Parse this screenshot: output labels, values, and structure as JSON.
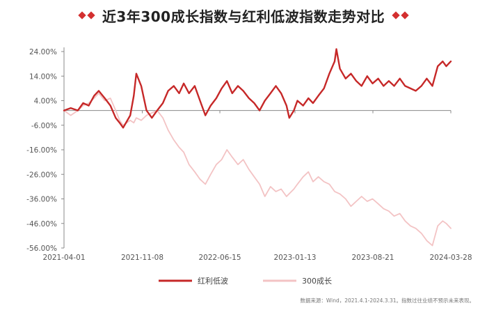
{
  "colors": {
    "dividend": "#c62828",
    "growth": "#f3c3c4",
    "accent": "#d32f2f",
    "axis": "#888888"
  },
  "chart_data": {
    "type": "line",
    "title": "近3年300成长指数与红利低波指数走势对比",
    "ylim": [
      -56,
      24
    ],
    "y_ticks": [
      24,
      14,
      4,
      -6,
      -16,
      -26,
      -36,
      -46,
      -56
    ],
    "y_tick_labels": [
      "24.00%",
      "14.00%",
      "4.00%",
      "-6.00%",
      "-16.00%",
      "-26.00%",
      "-36.00%",
      "-46.00%",
      "-56.00%"
    ],
    "x_tick_labels": [
      "2021-04-01",
      "2021-11-08",
      "2022-06-15",
      "2023-01-13",
      "2023-08-21",
      "2024-03-28"
    ],
    "x_tick_dates": [
      "2021-04-01",
      "2021-11-08",
      "2022-06-15",
      "2023-01-13",
      "2023-08-21",
      "2024-03-28"
    ],
    "grid": false,
    "legend": "bottom-center",
    "series": [
      {
        "name": "红利低波",
        "points": [
          [
            "2021-04-01",
            0
          ],
          [
            "2021-04-20",
            1
          ],
          [
            "2021-05-10",
            0
          ],
          [
            "2021-05-25",
            3
          ],
          [
            "2021-06-10",
            2
          ],
          [
            "2021-06-25",
            6
          ],
          [
            "2021-07-08",
            8
          ],
          [
            "2021-07-25",
            5
          ],
          [
            "2021-08-10",
            2
          ],
          [
            "2021-08-25",
            -3
          ],
          [
            "2021-09-05",
            -5
          ],
          [
            "2021-09-15",
            -7
          ],
          [
            "2021-10-05",
            -2
          ],
          [
            "2021-10-15",
            6
          ],
          [
            "2021-10-22",
            15
          ],
          [
            "2021-11-05",
            10
          ],
          [
            "2021-11-20",
            0
          ],
          [
            "2021-12-05",
            -3
          ],
          [
            "2021-12-20",
            0
          ],
          [
            "2022-01-05",
            3
          ],
          [
            "2022-01-20",
            8
          ],
          [
            "2022-02-05",
            10
          ],
          [
            "2022-02-20",
            7
          ],
          [
            "2022-03-05",
            11
          ],
          [
            "2022-03-20",
            7
          ],
          [
            "2022-04-05",
            10
          ],
          [
            "2022-04-20",
            4
          ],
          [
            "2022-05-05",
            -2
          ],
          [
            "2022-05-20",
            2
          ],
          [
            "2022-06-05",
            5
          ],
          [
            "2022-06-20",
            9
          ],
          [
            "2022-07-05",
            12
          ],
          [
            "2022-07-20",
            7
          ],
          [
            "2022-08-05",
            10
          ],
          [
            "2022-08-20",
            8
          ],
          [
            "2022-09-05",
            5
          ],
          [
            "2022-09-20",
            3
          ],
          [
            "2022-10-05",
            0
          ],
          [
            "2022-10-20",
            4
          ],
          [
            "2022-11-05",
            7
          ],
          [
            "2022-11-20",
            10
          ],
          [
            "2022-12-05",
            7
          ],
          [
            "2022-12-20",
            2
          ],
          [
            "2022-12-28",
            -3
          ],
          [
            "2023-01-10",
            0
          ],
          [
            "2023-01-20",
            4
          ],
          [
            "2023-02-05",
            2
          ],
          [
            "2023-02-20",
            5
          ],
          [
            "2023-03-05",
            3
          ],
          [
            "2023-03-20",
            6
          ],
          [
            "2023-04-05",
            9
          ],
          [
            "2023-04-20",
            15
          ],
          [
            "2023-05-05",
            20
          ],
          [
            "2023-05-10",
            25
          ],
          [
            "2023-05-20",
            17
          ],
          [
            "2023-06-05",
            13
          ],
          [
            "2023-06-20",
            15
          ],
          [
            "2023-07-05",
            12
          ],
          [
            "2023-07-20",
            10
          ],
          [
            "2023-08-05",
            14
          ],
          [
            "2023-08-20",
            11
          ],
          [
            "2023-09-05",
            13
          ],
          [
            "2023-09-20",
            10
          ],
          [
            "2023-10-05",
            12
          ],
          [
            "2023-10-20",
            10
          ],
          [
            "2023-11-05",
            13
          ],
          [
            "2023-11-20",
            10
          ],
          [
            "2023-12-05",
            9
          ],
          [
            "2023-12-20",
            8
          ],
          [
            "2024-01-05",
            10
          ],
          [
            "2024-01-20",
            13
          ],
          [
            "2024-02-05",
            10
          ],
          [
            "2024-02-20",
            18
          ],
          [
            "2024-03-05",
            20
          ],
          [
            "2024-03-15",
            18
          ],
          [
            "2024-03-28",
            20
          ]
        ]
      },
      {
        "name": "300成长",
        "points": [
          [
            "2021-04-01",
            0
          ],
          [
            "2021-04-20",
            -2
          ],
          [
            "2021-05-10",
            0
          ],
          [
            "2021-05-25",
            2
          ],
          [
            "2021-06-10",
            3
          ],
          [
            "2021-06-25",
            5
          ],
          [
            "2021-07-08",
            7
          ],
          [
            "2021-07-25",
            4
          ],
          [
            "2021-08-10",
            5
          ],
          [
            "2021-08-25",
            0
          ],
          [
            "2021-09-05",
            -4
          ],
          [
            "2021-09-15",
            -6
          ],
          [
            "2021-10-05",
            -4
          ],
          [
            "2021-10-15",
            -5
          ],
          [
            "2021-10-22",
            -3
          ],
          [
            "2021-11-05",
            -4
          ],
          [
            "2021-11-20",
            -2
          ],
          [
            "2021-12-05",
            -1
          ],
          [
            "2021-12-20",
            0
          ],
          [
            "2022-01-05",
            -3
          ],
          [
            "2022-01-20",
            -8
          ],
          [
            "2022-02-05",
            -12
          ],
          [
            "2022-02-20",
            -15
          ],
          [
            "2022-03-05",
            -17
          ],
          [
            "2022-03-20",
            -22
          ],
          [
            "2022-04-05",
            -25
          ],
          [
            "2022-04-20",
            -28
          ],
          [
            "2022-05-05",
            -30
          ],
          [
            "2022-05-20",
            -26
          ],
          [
            "2022-06-05",
            -22
          ],
          [
            "2022-06-20",
            -20
          ],
          [
            "2022-07-05",
            -16
          ],
          [
            "2022-07-20",
            -19
          ],
          [
            "2022-08-05",
            -22
          ],
          [
            "2022-08-20",
            -20
          ],
          [
            "2022-09-05",
            -24
          ],
          [
            "2022-09-20",
            -27
          ],
          [
            "2022-10-05",
            -30
          ],
          [
            "2022-10-20",
            -35
          ],
          [
            "2022-11-05",
            -31
          ],
          [
            "2022-11-20",
            -33
          ],
          [
            "2022-12-05",
            -32
          ],
          [
            "2022-12-20",
            -35
          ],
          [
            "2023-01-10",
            -32
          ],
          [
            "2023-01-20",
            -30
          ],
          [
            "2023-02-05",
            -27
          ],
          [
            "2023-02-20",
            -25
          ],
          [
            "2023-03-05",
            -29
          ],
          [
            "2023-03-20",
            -27
          ],
          [
            "2023-04-05",
            -29
          ],
          [
            "2023-04-20",
            -30
          ],
          [
            "2023-05-05",
            -33
          ],
          [
            "2023-05-20",
            -34
          ],
          [
            "2023-06-05",
            -36
          ],
          [
            "2023-06-20",
            -39
          ],
          [
            "2023-07-05",
            -37
          ],
          [
            "2023-07-20",
            -35
          ],
          [
            "2023-08-05",
            -37
          ],
          [
            "2023-08-20",
            -36
          ],
          [
            "2023-09-05",
            -38
          ],
          [
            "2023-09-20",
            -40
          ],
          [
            "2023-10-05",
            -41
          ],
          [
            "2023-10-20",
            -43
          ],
          [
            "2023-11-05",
            -42
          ],
          [
            "2023-11-20",
            -45
          ],
          [
            "2023-12-05",
            -47
          ],
          [
            "2023-12-20",
            -48
          ],
          [
            "2024-01-05",
            -50
          ],
          [
            "2024-01-20",
            -53
          ],
          [
            "2024-02-05",
            -55
          ],
          [
            "2024-02-20",
            -47
          ],
          [
            "2024-03-05",
            -45
          ],
          [
            "2024-03-15",
            -46
          ],
          [
            "2024-03-28",
            -48
          ]
        ]
      }
    ],
    "source_note": "数据来源：Wind，2021.4.1-2024.3.31。指数过往业绩不预示未来表现。"
  }
}
